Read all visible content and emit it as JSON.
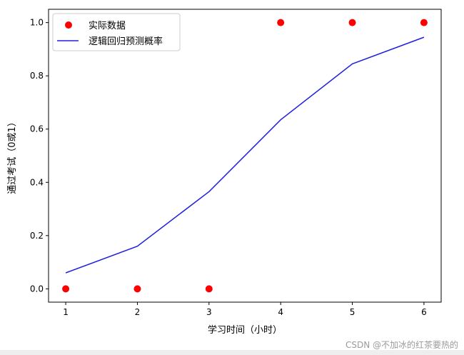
{
  "chart_data": {
    "type": "scatter",
    "xlabel": "学习时间（小时）",
    "ylabel": "通过考试（0或1）",
    "xlim": [
      0.76,
      6.24
    ],
    "ylim": [
      -0.05,
      1.05
    ],
    "x_ticks": [
      "1",
      "2",
      "3",
      "4",
      "5",
      "6"
    ],
    "y_ticks": [
      "0.0",
      "0.2",
      "0.4",
      "0.6",
      "0.8",
      "1.0"
    ],
    "grid": false,
    "legend_position": "upper-left",
    "series": [
      {
        "name": "实际数据",
        "kind": "scatter",
        "color": "#ff0000",
        "x": [
          1,
          2,
          3,
          4,
          5,
          6
        ],
        "y": [
          0,
          0,
          0,
          1,
          1,
          1
        ]
      },
      {
        "name": "逻辑回归预测概率",
        "kind": "line",
        "color": "#1f1fe0",
        "x": [
          1,
          2,
          3,
          4,
          5,
          6
        ],
        "y": [
          0.06,
          0.16,
          0.365,
          0.635,
          0.845,
          0.945
        ]
      }
    ]
  },
  "watermark": "CSDN @不加冰的红茶要热的"
}
